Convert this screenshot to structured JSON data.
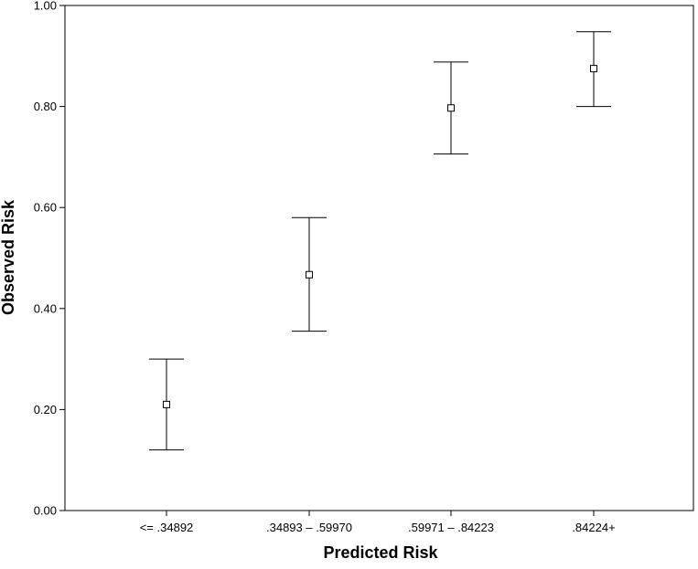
{
  "chart_data": {
    "type": "scatter",
    "subtype": "error-bar",
    "title": "",
    "xlabel": "Predicted Risk",
    "ylabel": "Observed Risk",
    "categories": [
      "<= .34892",
      ".34893 – .59970",
      ".59971 – .84223",
      ".84224+"
    ],
    "ylim": [
      0.0,
      1.0
    ],
    "yticks": [
      0.0,
      0.2,
      0.4,
      0.6,
      0.8,
      1.0
    ],
    "ytick_labels": [
      "0.00",
      "0.20",
      "0.40",
      "0.60",
      "0.80",
      "1.00"
    ],
    "series": [
      {
        "values": [
          0.21,
          0.467,
          0.797,
          0.875
        ],
        "lower": [
          0.12,
          0.355,
          0.706,
          0.8
        ],
        "upper": [
          0.3,
          0.58,
          0.888,
          0.948
        ]
      }
    ],
    "grid": false,
    "legend": "none",
    "marker": "hollow-square",
    "colors": {
      "line": "#000000",
      "background": "#ffffff"
    }
  }
}
